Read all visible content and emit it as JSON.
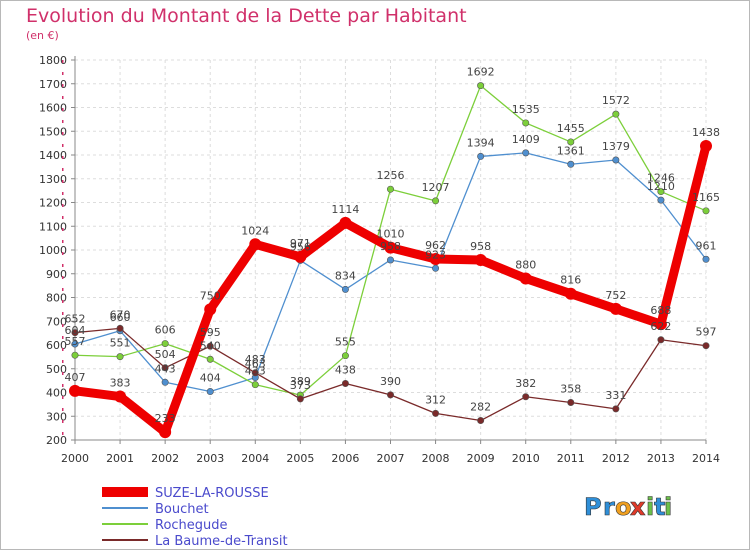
{
  "chart_data": {
    "type": "line",
    "title": "Evolution du Montant de la Dette par Habitant",
    "subtitle": "(en €)",
    "x": [
      "2000",
      "2001",
      "2002",
      "2003",
      "2004",
      "2005",
      "2006",
      "2007",
      "2008",
      "2009",
      "2010",
      "2011",
      "2012",
      "2013",
      "2014"
    ],
    "ylim": [
      200,
      1800
    ],
    "yticks": [
      200,
      300,
      400,
      500,
      600,
      700,
      800,
      900,
      1000,
      1100,
      1200,
      1300,
      1400,
      1500,
      1600,
      1700,
      1800
    ],
    "grid": true,
    "legend_position": "bottom-left",
    "series": [
      {
        "name": "SUZE-LA-ROUSSE",
        "color": "#ee0000",
        "emphasis": true,
        "values": [
          407,
          383,
          233,
          750,
          1024,
          971,
          1114,
          1010,
          962,
          958,
          880,
          816,
          752,
          688,
          1438
        ]
      },
      {
        "name": "Bouchet",
        "color": "#4f8fcf",
        "values": [
          604,
          660,
          443,
          404,
          463,
          956,
          834,
          958,
          923,
          1394,
          1409,
          1361,
          1379,
          1210,
          961
        ]
      },
      {
        "name": "Rochegude",
        "color": "#7ccf3a",
        "values": [
          557,
          551,
          606,
          540,
          433,
          389,
          555,
          1256,
          1207,
          1692,
          1535,
          1455,
          1572,
          1246,
          1165
        ]
      },
      {
        "name": "La Baume-de-Transit",
        "color": "#7a2a2a",
        "values": [
          652,
          670,
          504,
          595,
          483,
          373,
          438,
          390,
          312,
          282,
          382,
          358,
          331,
          622,
          597
        ]
      }
    ]
  },
  "branding": {
    "logo_text": "Proxiti",
    "letters": [
      "P",
      "r",
      "o",
      "x",
      "i",
      "t",
      "i"
    ],
    "letter_colors": [
      "#2f8fd8",
      "#2f8fd8",
      "#f0a020",
      "#e03a2a",
      "#6cc04a",
      "#2f8fd8",
      "#6cc04a"
    ]
  }
}
